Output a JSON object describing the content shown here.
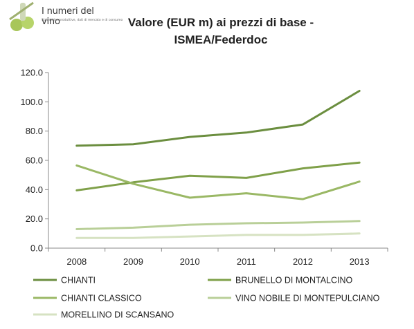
{
  "logo": {
    "title": "I numeri del vino",
    "subtitle": "Statistiche produttive, dati di mercato e di consumo"
  },
  "chart_data": {
    "type": "line",
    "title_lines": [
      "Valore (EUR m) ai prezzi di base -",
      "ISMEA/Federdoc"
    ],
    "categories": [
      "2008",
      "2009",
      "2010",
      "2011",
      "2012",
      "2013"
    ],
    "y_ticks": [
      "0.0",
      "20.0",
      "40.0",
      "60.0",
      "80.0",
      "100.0",
      "120.0"
    ],
    "ylim": [
      0,
      120
    ],
    "grid": false,
    "legend_position": "bottom",
    "series": [
      {
        "name": "CHIANTI",
        "color": "#6b8e3f",
        "values": [
          70.0,
          71.0,
          76.0,
          79.0,
          84.5,
          107.5
        ]
      },
      {
        "name": "BRUNELLO DI MONTALCINO",
        "color": "#7fa049",
        "values": [
          39.5,
          45.0,
          49.5,
          48.0,
          54.5,
          58.5
        ]
      },
      {
        "name": "CHIANTI CLASSICO",
        "color": "#9ab865",
        "values": [
          56.5,
          44.0,
          34.5,
          37.5,
          33.5,
          45.5
        ]
      },
      {
        "name": "VINO NOBILE DI MONTEPULCIANO",
        "color": "#b9cf98",
        "values": [
          13.0,
          14.0,
          16.0,
          17.0,
          17.5,
          18.5
        ]
      },
      {
        "name": "MORELLINO DI SCANSANO",
        "color": "#d6e2c2",
        "values": [
          7.0,
          7.0,
          8.0,
          9.0,
          9.0,
          10.0
        ]
      }
    ]
  }
}
